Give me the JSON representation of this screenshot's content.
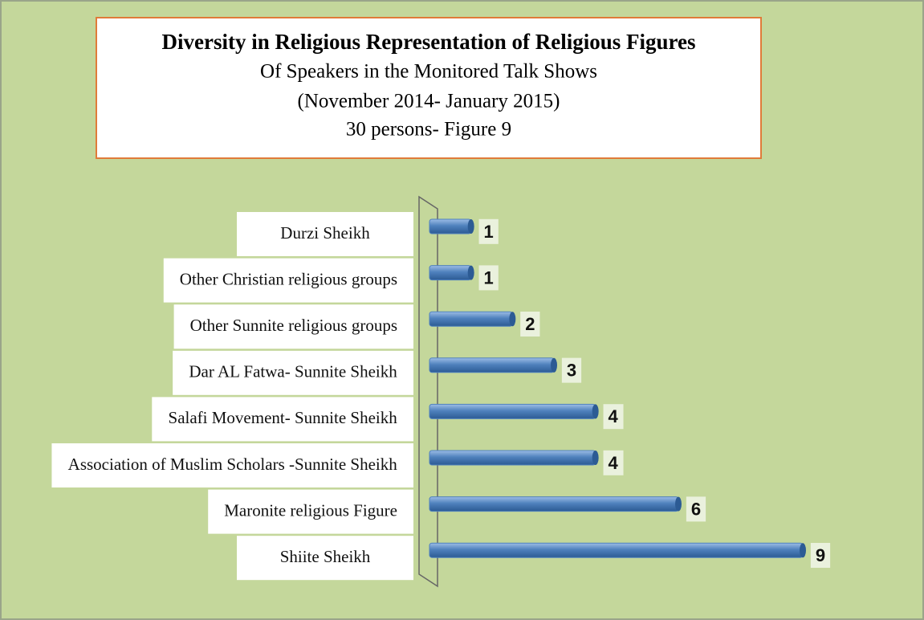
{
  "chart_data": {
    "type": "bar",
    "orientation": "horizontal",
    "title": "Diversity in Religious Representation of Religious Figures",
    "subtitle": [
      "Of Speakers in the Monitored Talk Shows",
      "(November 2014- January 2015)",
      "30 persons- Figure 9"
    ],
    "categories": [
      "Durzi Sheikh",
      "Other Christian religious  groups",
      "Other Sunnite religious  groups",
      "Dar AL  Fatwa- Sunnite Sheikh",
      "Salafi Movement- Sunnite Sheikh",
      "Association of Muslim Scholars -Sunnite Sheikh",
      "Maronite religious  Figure",
      "Shiite Sheikh"
    ],
    "values": [
      1,
      1,
      2,
      3,
      4,
      4,
      6,
      9
    ],
    "color": "#4f81bd"
  }
}
